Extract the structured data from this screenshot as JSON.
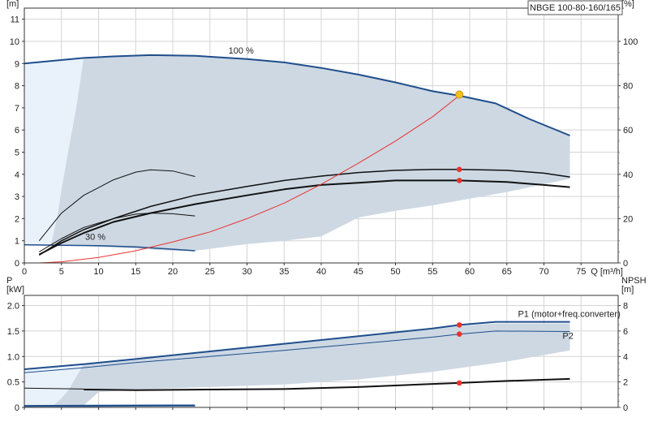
{
  "title": "NBGE 100-80-160/165",
  "colors": {
    "band_fill": "#cdd8e3",
    "band_light": "#e9f2fb",
    "curve_blue": "#1f4e8c",
    "curve_black": "#111111",
    "system_red": "#e8332f",
    "grid": "#d4d4d4",
    "duty_point": "#e8332f",
    "op_marker": "#f4c21a"
  },
  "chart_data": [
    {
      "type": "line",
      "name": "head-efficiency",
      "xlabel": "Q [m³/h]",
      "ylabel_left": "H\n[m]",
      "ylabel_right": "eta\n[%]",
      "x_ticks": [
        0,
        5,
        10,
        15,
        20,
        25,
        30,
        35,
        40,
        45,
        50,
        55,
        60,
        65,
        70,
        75
      ],
      "y_ticks": [
        0,
        1,
        2,
        3,
        4,
        5,
        6,
        7,
        8,
        9,
        10,
        11
      ],
      "y2_ticks": [
        0,
        20,
        40,
        60,
        80,
        100
      ],
      "xlim": [
        0,
        80
      ],
      "ylim": [
        0,
        11.5
      ],
      "y2lim": [
        0,
        115
      ],
      "band_upper": [
        [
          0,
          9.0
        ],
        [
          8,
          9.25
        ],
        [
          12,
          9.32
        ],
        [
          17,
          9.38
        ],
        [
          23,
          9.35
        ],
        [
          30,
          9.2
        ],
        [
          35,
          9.05
        ],
        [
          40,
          8.8
        ],
        [
          45,
          8.5
        ],
        [
          50,
          8.15
        ],
        [
          55,
          7.75
        ],
        [
          58.6,
          7.55
        ],
        [
          63.5,
          7.2
        ],
        [
          68,
          6.5
        ],
        [
          73.5,
          5.75
        ],
        [
          73.5,
          3.8
        ],
        [
          65,
          3.2
        ],
        [
          55,
          2.6
        ],
        [
          50,
          2.35
        ],
        [
          45,
          2.05
        ],
        [
          40,
          1.2
        ],
        [
          35,
          1.0
        ],
        [
          30,
          0.85
        ],
        [
          23,
          0.55
        ],
        [
          20,
          0.55
        ],
        [
          15,
          0.65
        ],
        [
          10,
          0.72
        ],
        [
          7.5,
          0.78
        ],
        [
          5,
          0.8
        ],
        [
          0,
          0.8
        ]
      ],
      "band_light": [
        [
          0,
          9.0
        ],
        [
          8,
          9.25
        ],
        [
          7,
          7.0
        ],
        [
          6,
          5.2
        ],
        [
          5,
          3.3
        ],
        [
          4.5,
          2.2
        ],
        [
          3.6,
          0.8
        ],
        [
          0,
          0.8
        ]
      ],
      "series": [
        {
          "name": "100 %",
          "role": "head",
          "color": "#1f4e8c",
          "width": 2,
          "points": [
            [
              0,
              9.0
            ],
            [
              8,
              9.25
            ],
            [
              12,
              9.32
            ],
            [
              17,
              9.38
            ],
            [
              23,
              9.35
            ],
            [
              30,
              9.2
            ],
            [
              35,
              9.05
            ],
            [
              40,
              8.8
            ],
            [
              45,
              8.5
            ],
            [
              50,
              8.15
            ],
            [
              55,
              7.75
            ],
            [
              58.6,
              7.55
            ],
            [
              63.5,
              7.2
            ],
            [
              68,
              6.5
            ],
            [
              73.5,
              5.75
            ]
          ]
        },
        {
          "name": "30 %",
          "role": "head",
          "color": "#1f4e8c",
          "width": 1.5,
          "points": [
            [
              0,
              0.82
            ],
            [
              5,
              0.8
            ],
            [
              10,
              0.78
            ],
            [
              15,
              0.72
            ],
            [
              20,
              0.62
            ],
            [
              23,
              0.55
            ]
          ]
        },
        {
          "name": "",
          "role": "eta",
          "color": "#111111",
          "width": 1.5,
          "points": [
            [
              2,
              0.35
            ],
            [
              5,
              1.0
            ],
            [
              8,
              1.5
            ],
            [
              12,
              2.0
            ],
            [
              17,
              2.55
            ],
            [
              23,
              3.05
            ],
            [
              30,
              3.45
            ],
            [
              35,
              3.72
            ],
            [
              40,
              3.92
            ],
            [
              45,
              4.08
            ],
            [
              50,
              4.18
            ],
            [
              55,
              4.22
            ],
            [
              58.6,
              4.22
            ],
            [
              65,
              4.18
            ],
            [
              70,
              4.05
            ],
            [
              73.5,
              3.88
            ]
          ]
        },
        {
          "name": "",
          "role": "eta",
          "color": "#111111",
          "width": 2,
          "points": [
            [
              2,
              0.38
            ],
            [
              5,
              0.9
            ],
            [
              8,
              1.35
            ],
            [
              12,
              1.85
            ],
            [
              17,
              2.25
            ],
            [
              23,
              2.65
            ],
            [
              30,
              3.05
            ],
            [
              35,
              3.32
            ],
            [
              40,
              3.52
            ],
            [
              45,
              3.62
            ],
            [
              50,
              3.72
            ],
            [
              55,
              3.72
            ],
            [
              58.6,
              3.72
            ],
            [
              65,
              3.65
            ],
            [
              70,
              3.52
            ],
            [
              73.5,
              3.42
            ]
          ]
        },
        {
          "name": "",
          "role": "eta",
          "color": "#111111",
          "width": 1,
          "points": [
            [
              2,
              1.0
            ],
            [
              5,
              2.25
            ],
            [
              8,
              3.05
            ],
            [
              12,
              3.75
            ],
            [
              15,
              4.1
            ],
            [
              17,
              4.2
            ],
            [
              20,
              4.15
            ],
            [
              23,
              3.9
            ]
          ]
        },
        {
          "name": "",
          "role": "eta",
          "color": "#111111",
          "width": 1,
          "points": [
            [
              2,
              0.5
            ],
            [
              5,
              1.1
            ],
            [
              8,
              1.6
            ],
            [
              12,
              2.0
            ],
            [
              15,
              2.2
            ],
            [
              17,
              2.25
            ],
            [
              20,
              2.22
            ],
            [
              23,
              2.12
            ]
          ]
        },
        {
          "name": "",
          "role": "system",
          "color": "#e8332f",
          "width": 1,
          "points": [
            [
              2,
              0.0
            ],
            [
              5,
              0.05
            ],
            [
              10,
              0.25
            ],
            [
              15,
              0.55
            ],
            [
              20,
              0.95
            ],
            [
              25,
              1.4
            ],
            [
              30,
              2.0
            ],
            [
              35,
              2.7
            ],
            [
              40,
              3.55
            ],
            [
              45,
              4.5
            ],
            [
              50,
              5.5
            ],
            [
              55,
              6.6
            ],
            [
              58.6,
              7.55
            ]
          ]
        }
      ],
      "points": [
        {
          "x": 58.6,
          "y": 7.6,
          "kind": "duty",
          "label": ""
        },
        {
          "x": 58.6,
          "y": 4.22,
          "kind": "eta-mark",
          "label": ""
        },
        {
          "x": 58.6,
          "y": 3.72,
          "kind": "eta-mark",
          "label": ""
        }
      ],
      "curve_labels": [
        {
          "text": "100 %",
          "x": 27.5,
          "y": 9.45
        },
        {
          "text": "30 %",
          "x": 8.2,
          "y": 1.05
        }
      ]
    },
    {
      "type": "line",
      "name": "power-npsh",
      "ylabel_left": "P\n[kW]",
      "ylabel_right": "NPSH\n[m]",
      "x_ticks": [
        0,
        5,
        10,
        15,
        20,
        25,
        30,
        35,
        40,
        45,
        50,
        55,
        60,
        65,
        70,
        75
      ],
      "y_ticks": [
        0,
        0.5,
        1.0,
        1.5,
        2.0
      ],
      "y_tick_labels": [
        "0",
        "0.5",
        "1.0",
        "1.5",
        "2.0"
      ],
      "y2_ticks": [
        0,
        2,
        4,
        6,
        8
      ],
      "xlim": [
        0,
        80
      ],
      "ylim": [
        0,
        2.2
      ],
      "y2lim": [
        0,
        8.8
      ],
      "band_upper": [
        [
          0,
          0.75
        ],
        [
          8,
          0.85
        ],
        [
          15,
          0.95
        ],
        [
          25,
          1.1
        ],
        [
          35,
          1.25
        ],
        [
          45,
          1.4
        ],
        [
          55,
          1.55
        ],
        [
          58.6,
          1.6
        ],
        [
          63.5,
          1.65
        ],
        [
          73.5,
          1.65
        ],
        [
          73.5,
          1.12
        ],
        [
          65,
          0.9
        ],
        [
          55,
          0.7
        ],
        [
          45,
          0.55
        ],
        [
          35,
          0.45
        ],
        [
          25,
          0.4
        ],
        [
          15,
          0.35
        ],
        [
          10,
          0.3
        ],
        [
          8,
          0.04
        ],
        [
          0,
          0.04
        ]
      ],
      "band_light": [
        [
          0,
          0.75
        ],
        [
          8,
          0.85
        ],
        [
          7,
          0.6
        ],
        [
          6,
          0.35
        ],
        [
          5,
          0.18
        ],
        [
          4,
          0.05
        ],
        [
          0,
          0.05
        ]
      ],
      "series": [
        {
          "name": "P1 (motor+freq.converter)",
          "role": "p1",
          "color": "#1f4e8c",
          "width": 2,
          "points": [
            [
              0,
              0.75
            ],
            [
              8,
              0.85
            ],
            [
              15,
              0.95
            ],
            [
              25,
              1.1
            ],
            [
              35,
              1.25
            ],
            [
              45,
              1.4
            ],
            [
              55,
              1.55
            ],
            [
              58.6,
              1.62
            ],
            [
              63.5,
              1.68
            ],
            [
              73.5,
              1.68
            ]
          ]
        },
        {
          "name": "P2",
          "role": "p2",
          "color": "#1f4e8c",
          "width": 1,
          "points": [
            [
              0,
              0.68
            ],
            [
              8,
              0.78
            ],
            [
              15,
              0.88
            ],
            [
              25,
              1.0
            ],
            [
              35,
              1.12
            ],
            [
              45,
              1.25
            ],
            [
              55,
              1.38
            ],
            [
              58.6,
              1.44
            ],
            [
              63.5,
              1.5
            ],
            [
              73.5,
              1.49
            ]
          ]
        },
        {
          "name": "",
          "role": "p-low",
          "color": "#1f4e8c",
          "width": 2,
          "points": [
            [
              0,
              0.03
            ],
            [
              10,
              0.035
            ],
            [
              20,
              0.04
            ],
            [
              23,
              0.04
            ]
          ]
        },
        {
          "name": "",
          "role": "p-low-thin",
          "color": "#1f4e8c",
          "width": 1,
          "points": [
            [
              0,
              0.02
            ],
            [
              10,
              0.02
            ],
            [
              20,
              0.025
            ],
            [
              23,
              0.025
            ]
          ]
        },
        {
          "name": "",
          "role": "npsh",
          "color": "#111111",
          "width": 2,
          "points": [
            [
              8,
              0.35
            ],
            [
              15,
              0.34
            ],
            [
              25,
              0.35
            ],
            [
              35,
              0.36
            ],
            [
              45,
              0.4
            ],
            [
              55,
              0.46
            ],
            [
              58.6,
              0.48
            ],
            [
              65,
              0.52
            ],
            [
              73.5,
              0.56
            ]
          ]
        },
        {
          "name": "",
          "role": "npsh-thin",
          "color": "#111111",
          "width": 1,
          "points": [
            [
              0,
              0.38
            ],
            [
              8,
              0.36
            ]
          ]
        }
      ],
      "points": [
        {
          "x": 58.6,
          "y": 1.62,
          "kind": "eta-mark"
        },
        {
          "x": 58.6,
          "y": 1.44,
          "kind": "eta-mark"
        },
        {
          "x": 58.6,
          "y": 0.48,
          "kind": "eta-mark"
        }
      ],
      "curve_labels": [
        {
          "text": "P1 (motor+freq.converter)",
          "x": 66.5,
          "y": 1.78,
          "color": "#1f4e8c"
        },
        {
          "text": "P2",
          "x": 72.5,
          "y": 1.35,
          "color": "#1f4e8c"
        }
      ]
    }
  ]
}
